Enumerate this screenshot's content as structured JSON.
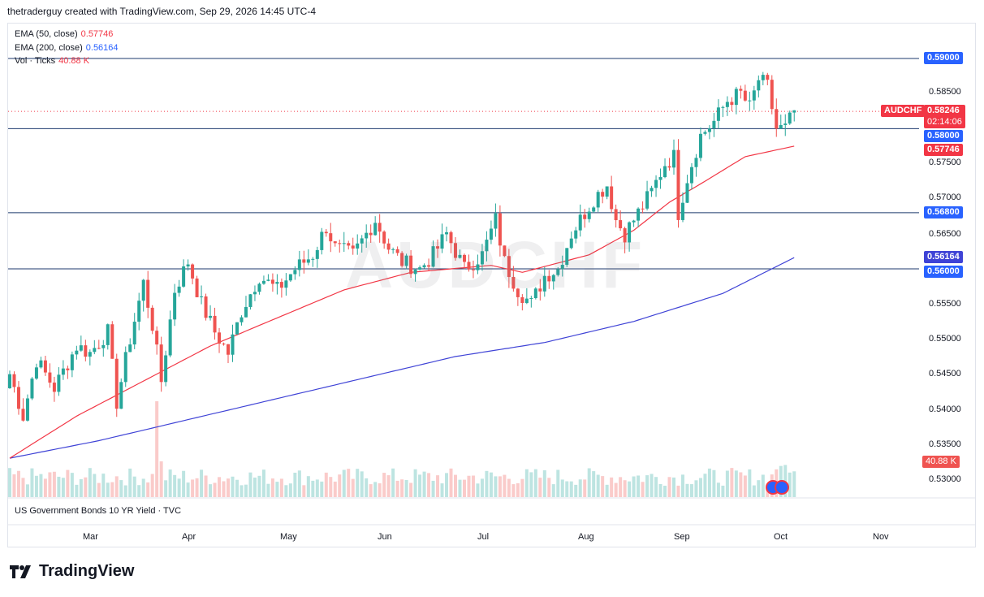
{
  "header": "thetraderguy created with TradingView.com, Sep 29, 2026 14:45 UTC-4",
  "brand": "TradingView",
  "watermark": "AUDCHF",
  "indicators": [
    {
      "label": "EMA (50, close)",
      "value": "0.57746",
      "color": "#f23645"
    },
    {
      "label": "EMA (200, close)",
      "value": "0.56164",
      "color": "#2962ff"
    },
    {
      "label": "Vol · Ticks",
      "value": "40.88 K",
      "color": "#f23645"
    }
  ],
  "lower_pane_label": "US Government Bonds 10 YR Yield · TVC",
  "colors": {
    "up": "#26a69a",
    "down": "#ef5350",
    "ema50": "#f23645",
    "ema200": "#3f43d6",
    "hline": "#1e3a6e"
  },
  "chart_data": {
    "type": "candlestick",
    "symbol": "AUDCHF",
    "y_range": [
      0.5285,
      0.5915
    ],
    "price_ticks": [
      "0.59000",
      "0.58500",
      "0.57500",
      "0.57000",
      "0.56500",
      "0.55500",
      "0.55000",
      "0.54500",
      "0.54000",
      "0.53500",
      "0.53000"
    ],
    "months": [
      "Mar",
      "Apr",
      "May",
      "Jun",
      "Jul",
      "Aug",
      "Sep",
      "Oct",
      "Nov"
    ],
    "horizontal_levels": [
      0.59,
      0.58,
      0.568,
      0.56
    ],
    "level_labels": [
      "0.59000",
      "0.58000",
      "0.56800",
      "0.56000"
    ],
    "last_price": {
      "symbol": "AUDCHF",
      "price": "0.58246",
      "countdown": "02:14:06"
    },
    "ema50_label": "0.57746",
    "ema200_label": "0.56164",
    "volume_label": "40.88 K",
    "close_anchors": [
      [
        0,
        0.545
      ],
      [
        3,
        0.539
      ],
      [
        6,
        0.547
      ],
      [
        10,
        0.543
      ],
      [
        15,
        0.549
      ],
      [
        18,
        0.548
      ],
      [
        22,
        0.551
      ],
      [
        24,
        0.541
      ],
      [
        27,
        0.55
      ],
      [
        30,
        0.558
      ],
      [
        32,
        0.552
      ],
      [
        34,
        0.544
      ],
      [
        37,
        0.557
      ],
      [
        40,
        0.561
      ],
      [
        43,
        0.555
      ],
      [
        46,
        0.551
      ],
      [
        49,
        0.548
      ],
      [
        52,
        0.554
      ],
      [
        56,
        0.559
      ],
      [
        60,
        0.557
      ],
      [
        64,
        0.56
      ],
      [
        68,
        0.562
      ],
      [
        71,
        0.566
      ],
      [
        73,
        0.563
      ],
      [
        77,
        0.562
      ],
      [
        80,
        0.565
      ],
      [
        82,
        0.567
      ],
      [
        85,
        0.563
      ],
      [
        88,
        0.561
      ],
      [
        92,
        0.56
      ],
      [
        95,
        0.562
      ],
      [
        98,
        0.565
      ],
      [
        102,
        0.56
      ],
      [
        106,
        0.562
      ],
      [
        109,
        0.567
      ],
      [
        111,
        0.561
      ],
      [
        114,
        0.557
      ],
      [
        117,
        0.555
      ],
      [
        120,
        0.559
      ],
      [
        123,
        0.56
      ],
      [
        126,
        0.565
      ],
      [
        129,
        0.568
      ],
      [
        131,
        0.57
      ],
      [
        134,
        0.572
      ],
      [
        136,
        0.567
      ],
      [
        138,
        0.565
      ],
      [
        141,
        0.568
      ],
      [
        144,
        0.571
      ],
      [
        147,
        0.575
      ],
      [
        149,
        0.576
      ],
      [
        150,
        0.568
      ],
      [
        152,
        0.573
      ],
      [
        155,
        0.579
      ],
      [
        158,
        0.581
      ],
      [
        161,
        0.584
      ],
      [
        164,
        0.585
      ],
      [
        166,
        0.583
      ],
      [
        168,
        0.587
      ],
      [
        170,
        0.586
      ],
      [
        172,
        0.58
      ],
      [
        174,
        0.58
      ],
      [
        176,
        0.5825
      ]
    ],
    "ema50_anchors": [
      [
        0,
        0.533
      ],
      [
        15,
        0.539
      ],
      [
        30,
        0.544
      ],
      [
        45,
        0.549
      ],
      [
        60,
        0.553
      ],
      [
        75,
        0.557
      ],
      [
        90,
        0.5595
      ],
      [
        108,
        0.5605
      ],
      [
        115,
        0.5595
      ],
      [
        130,
        0.562
      ],
      [
        140,
        0.5655
      ],
      [
        148,
        0.5695
      ],
      [
        156,
        0.5725
      ],
      [
        165,
        0.576
      ],
      [
        176,
        0.5775
      ]
    ],
    "ema200_anchors": [
      [
        0,
        0.533
      ],
      [
        20,
        0.5355
      ],
      [
        40,
        0.5385
      ],
      [
        60,
        0.5415
      ],
      [
        80,
        0.5445
      ],
      [
        100,
        0.5475
      ],
      [
        120,
        0.5495
      ],
      [
        140,
        0.5525
      ],
      [
        160,
        0.5565
      ],
      [
        176,
        0.5616
      ]
    ]
  }
}
